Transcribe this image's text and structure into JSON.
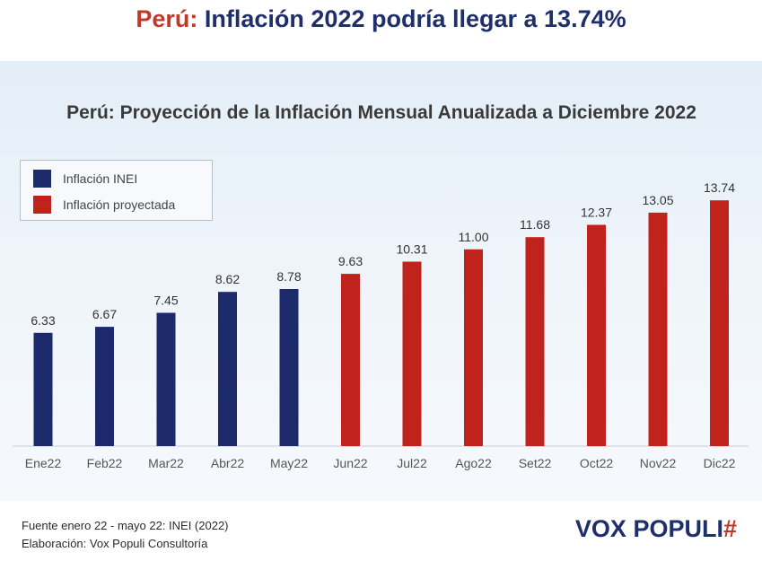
{
  "headline": {
    "prefix": "Perú:",
    "text": "Inflación 2022 podría llegar a 13.74%"
  },
  "footer": {
    "source": "Fuente enero 22 - mayo 22: INEI (2022)",
    "credit": "Elaboración: Vox Populi Consultoría"
  },
  "brand": {
    "name": "VOX POPULI",
    "mark": "#"
  },
  "colors": {
    "inei": "#1c2a6b",
    "projected": "#c0221c",
    "headline_blue": "#1f2f6b",
    "headline_red": "#c0392b"
  },
  "chart_data": {
    "type": "bar",
    "title": "Perú: Proyección de la Inflación Mensual Anualizada a Diciembre 2022",
    "xlabel": "",
    "ylabel": "",
    "categories": [
      "Ene22",
      "Feb22",
      "Mar22",
      "Abr22",
      "May22",
      "Jun22",
      "Jul22",
      "Ago22",
      "Set22",
      "Oct22",
      "Nov22",
      "Dic22"
    ],
    "series": [
      {
        "name": "Inflación INEI",
        "color": "#1c2a6b",
        "values": [
          6.33,
          6.67,
          7.45,
          8.62,
          8.78,
          null,
          null,
          null,
          null,
          null,
          null,
          null
        ]
      },
      {
        "name": "Inflación proyectada",
        "color": "#c0221c",
        "values": [
          null,
          null,
          null,
          null,
          null,
          9.63,
          10.31,
          11.0,
          11.68,
          12.37,
          13.05,
          13.74
        ]
      }
    ],
    "value_labels": [
      "6.33",
      "6.67",
      "7.45",
      "8.62",
      "8.78",
      "9.63",
      "10.31",
      "11.00",
      "11.68",
      "12.37",
      "13.05",
      "13.74"
    ],
    "ylim": [
      0,
      14.4
    ],
    "grid": false,
    "legend_position": "top-left"
  }
}
